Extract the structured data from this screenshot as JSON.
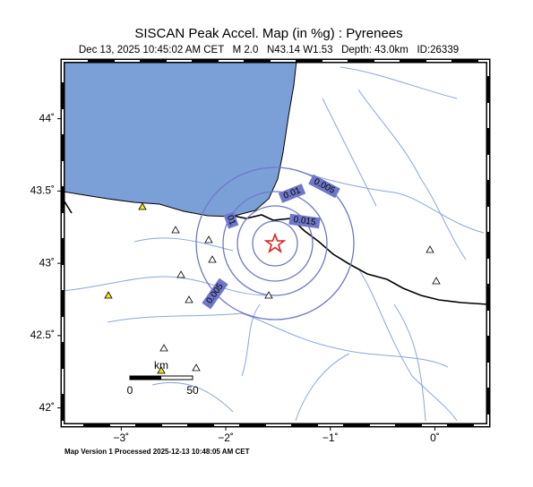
{
  "map": {
    "title": "SISCAN Peak Accel. Map (in %g) : Pyrenees",
    "subtitle": "Dec 13, 2025 10:45:02 AM CET   M 2.0   N43.14 W1.53   Depth: 43.0km   ID:26339",
    "footer": "Map Version 1 Processed 2025-12-13 10:48:05 AM CET",
    "lonlim": [
      -3.56,
      0.51
    ],
    "latlim": [
      41.88,
      44.4
    ],
    "lonticks": [
      {
        "value": -3,
        "label": "−3˚"
      },
      {
        "value": -2,
        "label": "−2˚"
      },
      {
        "value": -1,
        "label": "−1˚"
      },
      {
        "value": 0,
        "label": "0˚"
      }
    ],
    "latticks": [
      {
        "value": 44,
        "label": "44˚"
      },
      {
        "value": 43.5,
        "label": "43.5˚"
      },
      {
        "value": 43,
        "label": "43˚"
      },
      {
        "value": 42.5,
        "label": "42.5˚"
      },
      {
        "value": 42,
        "label": "42˚"
      }
    ],
    "contour_labels": [
      "0.01",
      "0.005",
      "0.015",
      "0.005",
      "01"
    ],
    "scale_bar": {
      "unit": "km",
      "labels": [
        "0",
        "50"
      ]
    }
  }
}
